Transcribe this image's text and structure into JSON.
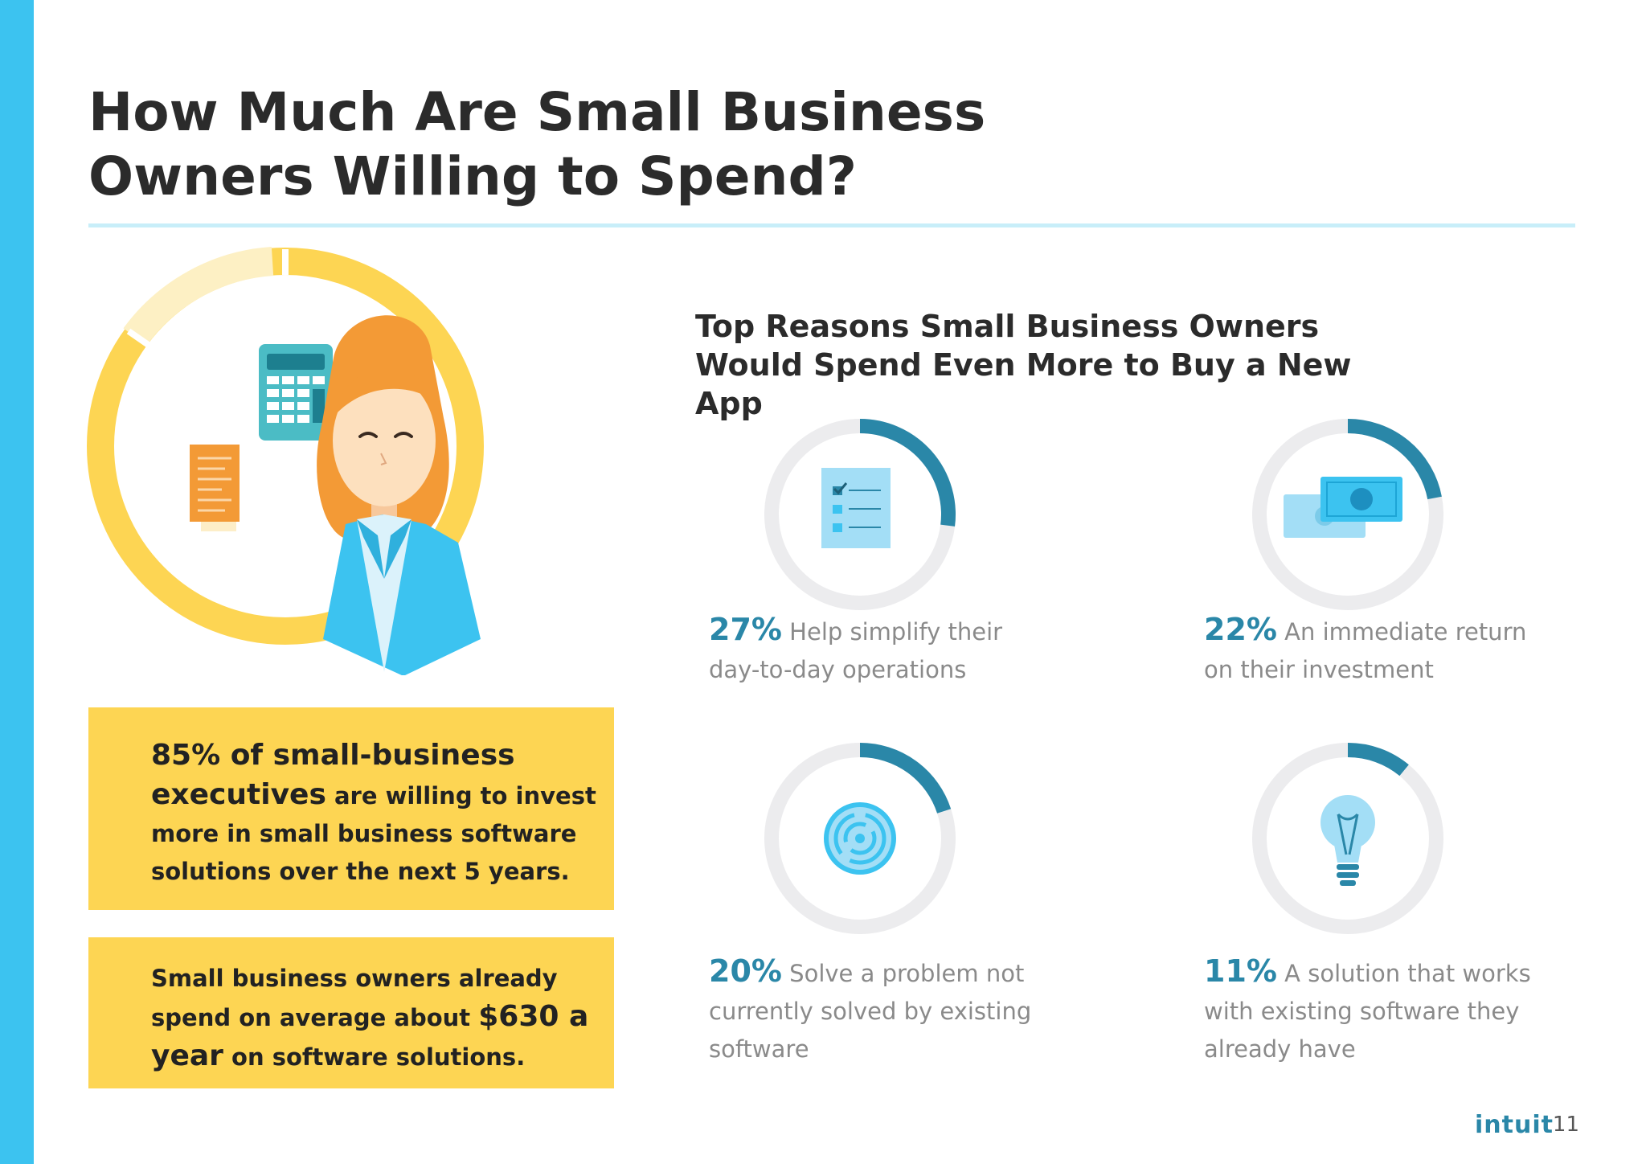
{
  "title": "How Much Are Small Business Owners Willing to Spend?",
  "subtitle": "Top Reasons Small Business Owners Would Spend Even More to Buy a New App",
  "box1": {
    "emphasis": "85% of small-business executives",
    "rest": " are willing to invest more in small business software solutions over the next 5 years."
  },
  "box2": {
    "pre": "Small business owners already spend on average about ",
    "emphasis": "$630 a year",
    "post": " on software solutions."
  },
  "chart_data": {
    "type": "pie",
    "title": "Top Reasons Small Business Owners Would Spend Even More to Buy a New App",
    "unit": "%",
    "items": [
      {
        "value": 27,
        "pct_label": "27%",
        "text": " Help simplify their day-to-day operations",
        "icon": "checklist-icon"
      },
      {
        "value": 22,
        "pct_label": "22%",
        "text": " An immediate return on their investment",
        "icon": "cash-icon"
      },
      {
        "value": 20,
        "pct_label": "20%",
        "text": " Solve a problem not currently solved by existing software",
        "icon": "maze-icon"
      },
      {
        "value": 11,
        "pct_label": "11%",
        "text": " A solution that works with existing software they already have",
        "icon": "lightbulb-icon"
      }
    ]
  },
  "colors": {
    "accent": "#2a87a8",
    "ring_track": "#ececee",
    "yellow": "#fdd553",
    "sidebar": "#3cc3f0"
  },
  "footer": {
    "logo": "intuit",
    "page": "11"
  }
}
